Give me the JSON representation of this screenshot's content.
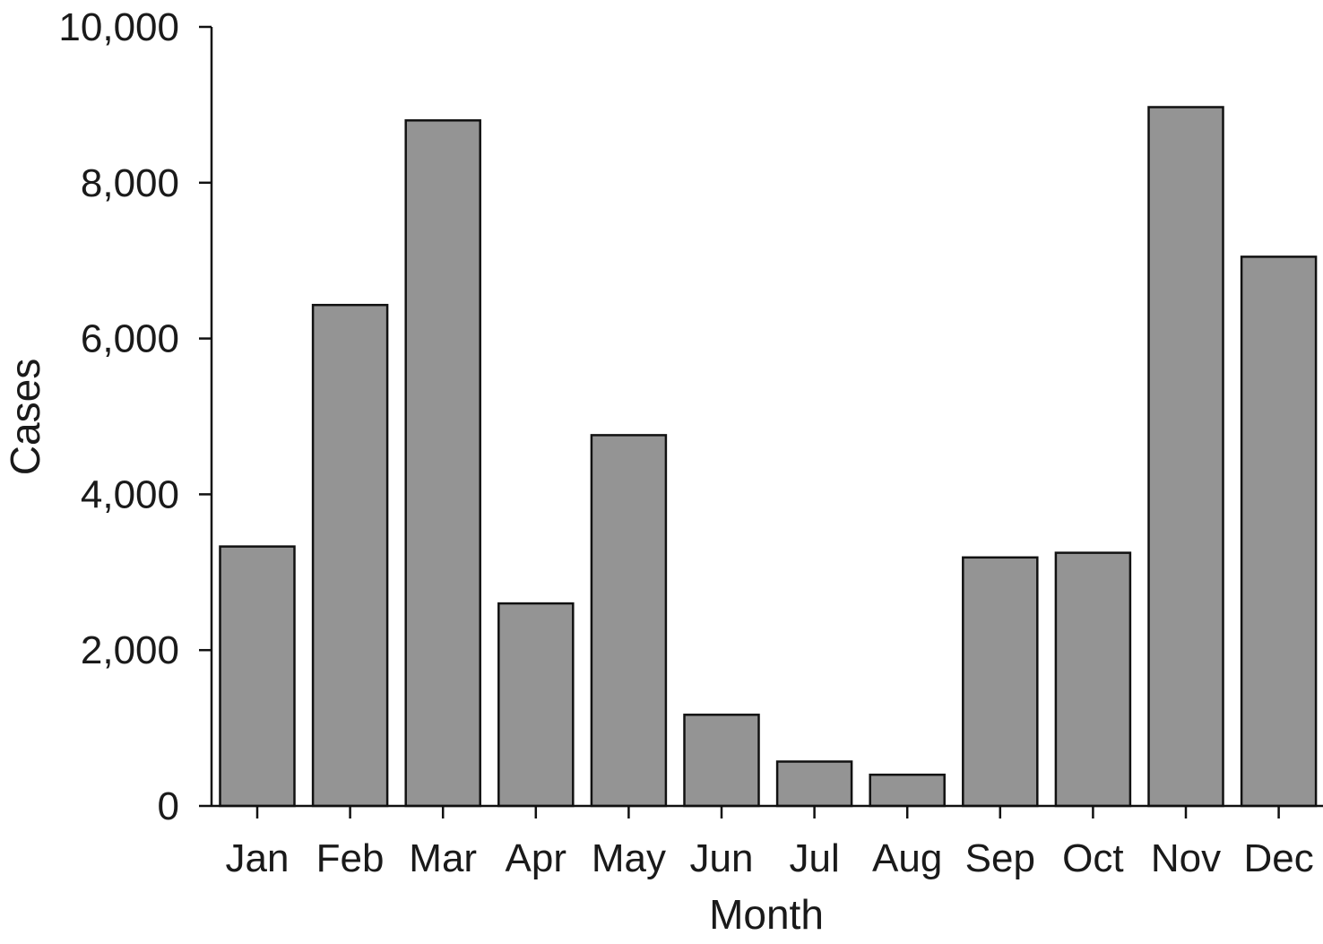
{
  "chart_data": {
    "type": "bar",
    "title": "",
    "xlabel": "Month",
    "ylabel": "Cases",
    "categories": [
      "Jan",
      "Feb",
      "Mar",
      "Apr",
      "May",
      "Jun",
      "Jul",
      "Aug",
      "Sep",
      "Oct",
      "Nov",
      "Dec"
    ],
    "values": [
      3330,
      6430,
      8800,
      2600,
      4760,
      1170,
      570,
      400,
      3190,
      3250,
      8970,
      7050
    ],
    "ylim": [
      0,
      10000
    ],
    "yticks": [
      0,
      2000,
      4000,
      6000,
      8000,
      10000
    ],
    "ytick_labels": [
      "0",
      "2,000",
      "4,000",
      "6,000",
      "8,000",
      "10,000"
    ],
    "grid": false,
    "legend": "none",
    "colors": {
      "bar_fill": "#949494",
      "bar_stroke": "#111111",
      "axis": "#111111",
      "text": "#1a1a1a"
    }
  }
}
